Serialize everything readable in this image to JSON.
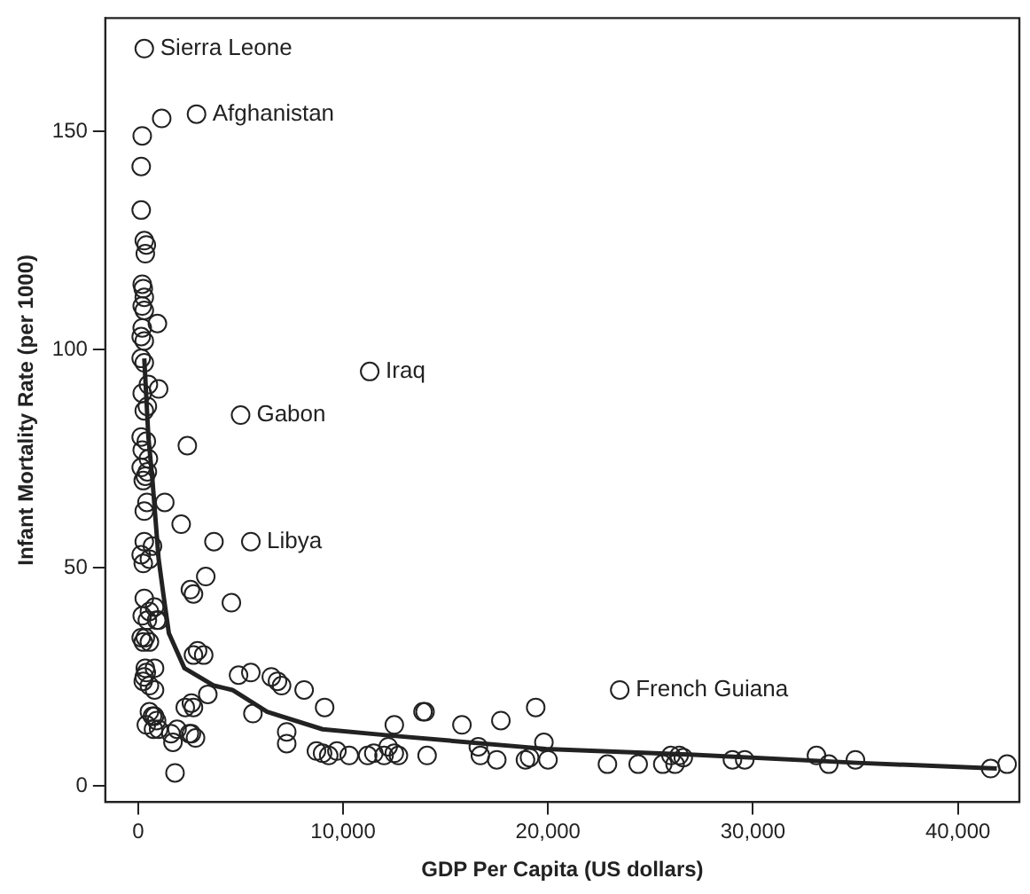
{
  "chart_data": {
    "type": "scatter",
    "xlabel": "GDP Per Capita (US dollars)",
    "ylabel": "Infant Mortality Rate (per 1000)",
    "xlim": [
      -1600,
      43000
    ],
    "ylim": [
      -3.7,
      176
    ],
    "xticks": [
      0,
      {
        "value": 10000,
        "label": "10,000"
      },
      {
        "value": 20000,
        "label": "20,000"
      },
      {
        "value": 30000,
        "label": "30,000"
      },
      {
        "value": 40000,
        "label": "40,000"
      }
    ],
    "yticks": [
      0,
      50,
      100,
      150
    ],
    "grid": false,
    "legend": false,
    "marker": "circle",
    "series": [
      {
        "color": "#222222",
        "x": [
          300,
          2850,
          1150,
          11300,
          5000,
          5500,
          23500,
          200,
          150,
          150,
          300,
          400,
          350,
          200,
          250,
          300,
          200,
          300,
          940,
          200,
          150,
          300,
          150,
          300,
          500,
          200,
          1000,
          300,
          450,
          2400,
          150,
          400,
          200,
          500,
          150,
          350,
          450,
          250,
          430,
          1300,
          300,
          2100,
          3700,
          300,
          700,
          150,
          550,
          250,
          3300,
          2550,
          2700,
          4550,
          300,
          800,
          550,
          200,
          450,
          900,
          1000,
          250,
          150,
          350,
          550,
          2700,
          2900,
          3200,
          350,
          400,
          300,
          250,
          550,
          800,
          800,
          3400,
          2600,
          2700,
          2300,
          550,
          800,
          900,
          700,
          400,
          750,
          1000,
          1600,
          1900,
          2500,
          2800,
          2600,
          1700,
          1800,
          4900,
          5500,
          6500,
          6800,
          7000,
          8100,
          9100,
          5600,
          7250,
          7250,
          8700,
          9000,
          9300,
          9700,
          10300,
          11200,
          11500,
          12000,
          12500,
          12500,
          13900,
          12200,
          12700,
          14000,
          14100,
          15800,
          16600,
          16700,
          17700,
          17500,
          18900,
          19100,
          19400,
          19800,
          20000,
          22900,
          24400,
          25600,
          26000,
          26200,
          26600,
          26400,
          29000,
          29600,
          33100,
          33700,
          35000,
          41600,
          42400
        ],
        "values": [
          169,
          154,
          153,
          95,
          85,
          56,
          22,
          149,
          142,
          132,
          125,
          124,
          122,
          115,
          114,
          112,
          110,
          109,
          106,
          105,
          103,
          102,
          98,
          97,
          92,
          90,
          91,
          86,
          87,
          78,
          80,
          79,
          77,
          75,
          73,
          71,
          72,
          70,
          65,
          65,
          63,
          60,
          56,
          56,
          55,
          53,
          52,
          51,
          48,
          45,
          44,
          42,
          43,
          41,
          40,
          39,
          38,
          38,
          38,
          33,
          34,
          34,
          33,
          30,
          31,
          30,
          27,
          26,
          25,
          24,
          23,
          22,
          27,
          21,
          19,
          18,
          18,
          17,
          16,
          15,
          16,
          14,
          13,
          13,
          12,
          13,
          12,
          11,
          12,
          10,
          3,
          25.4,
          26,
          25,
          24,
          23,
          22,
          18,
          16.6,
          12.4,
          9.7,
          8,
          7.5,
          7,
          8,
          7,
          7,
          7.5,
          7,
          7.5,
          14,
          17,
          9,
          7,
          17,
          7,
          14,
          9,
          7,
          15,
          6,
          6,
          6.5,
          18,
          10,
          6,
          5,
          5,
          5,
          7,
          5,
          6.5,
          7,
          6,
          6,
          7,
          5,
          6,
          4,
          5
        ]
      },
      {
        "type": "line",
        "color": "#222222",
        "marker": "none",
        "x": [
          300,
          500,
          700,
          1000,
          1230,
          1500,
          2260,
          3700,
          4600,
          6300,
          9000,
          12200,
          19900,
          26900,
          35100,
          41900
        ],
        "values": [
          98,
          80,
          70,
          52,
          44,
          35,
          27,
          23,
          22,
          17,
          13,
          11.6,
          8.5,
          7.2,
          5.3,
          4
        ]
      }
    ],
    "annotations": [
      {
        "text": "Sierra Leone",
        "x": 300,
        "y": 169
      },
      {
        "text": "Afghanistan",
        "x": 2850,
        "y": 154
      },
      {
        "text": "Iraq",
        "x": 11300,
        "y": 95
      },
      {
        "text": "Gabon",
        "x": 5000,
        "y": 85
      },
      {
        "text": "Libya",
        "x": 5500,
        "y": 56
      },
      {
        "text": "French Guiana",
        "x": 23500,
        "y": 22
      }
    ]
  }
}
